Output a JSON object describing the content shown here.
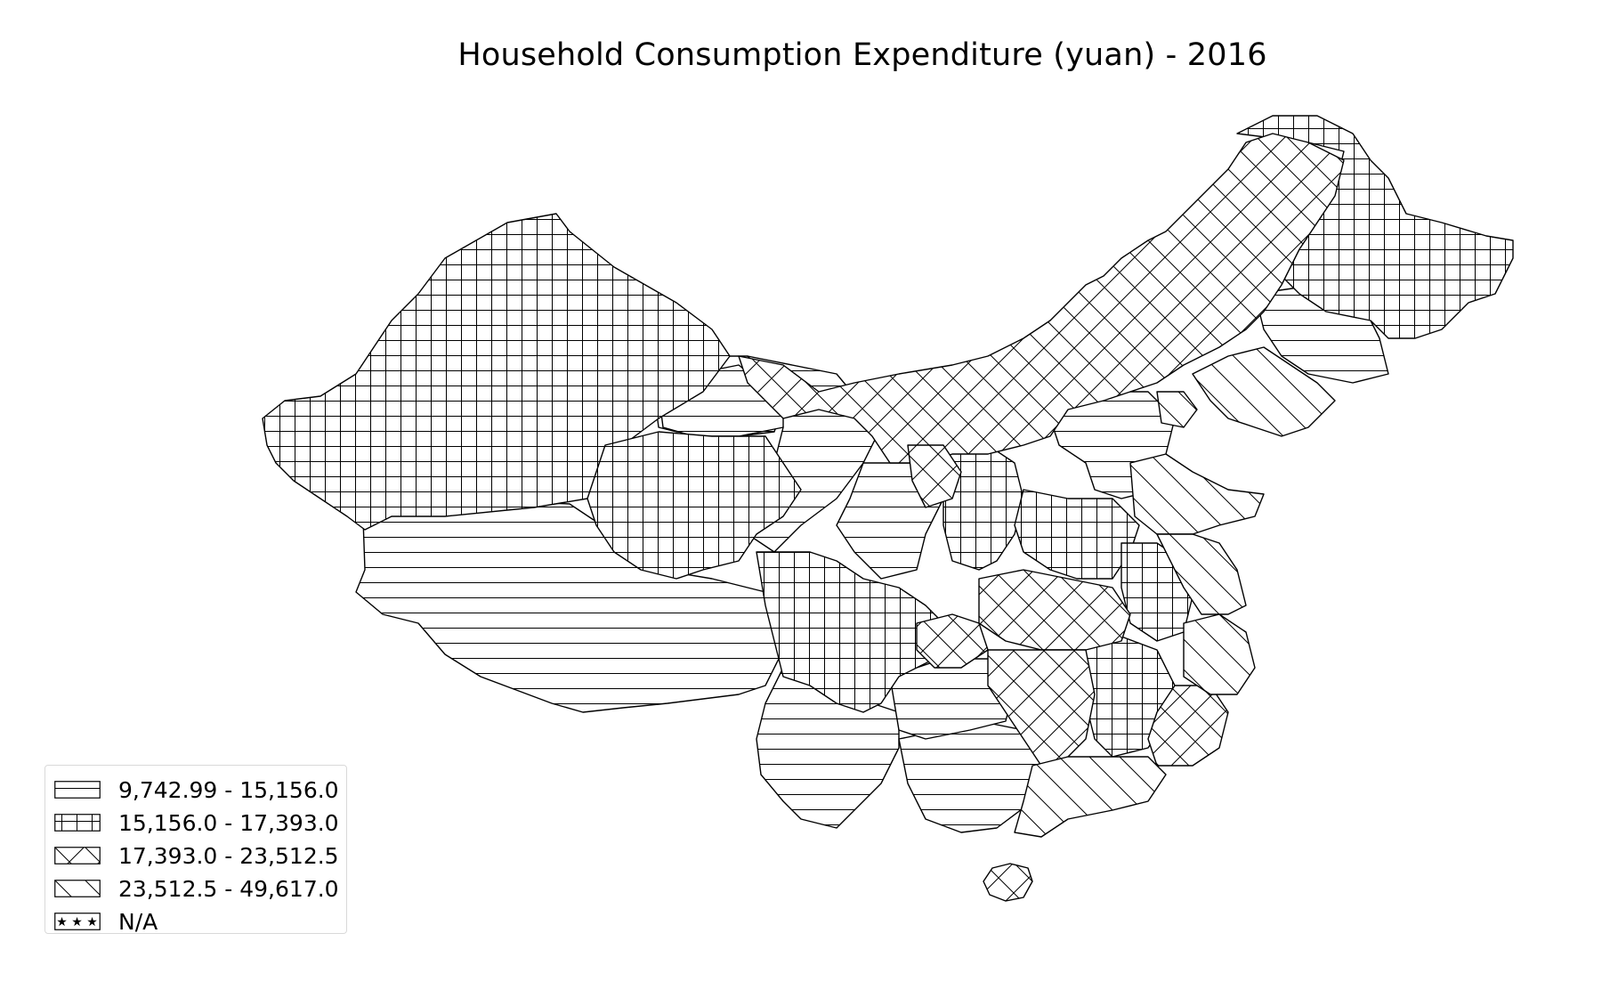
{
  "chart_data": {
    "type": "choropleth",
    "title": "Household Consumption Expenditure (yuan) - 2016",
    "legend_position": "bottom-left",
    "classes": [
      {
        "label": "9,742.99 - 15,156.0",
        "pattern": "horizontal-lines"
      },
      {
        "label": "15,156.0 - 17,393.0",
        "pattern": "grid"
      },
      {
        "label": "17,393.0 - 23,512.5",
        "pattern": "diagonal-cross"
      },
      {
        "label": "23,512.5 - 49,617.0",
        "pattern": "backslash"
      },
      {
        "label": "N/A",
        "pattern": "stars"
      }
    ],
    "region_classes": [
      {
        "class_index": 0
      },
      {
        "class_index": 0
      },
      {
        "class_index": 0
      },
      {
        "class_index": 0
      },
      {
        "class_index": 0
      },
      {
        "class_index": 0
      },
      {
        "class_index": 0
      },
      {
        "class_index": 0
      },
      {
        "class_index": 0
      },
      {
        "class_index": 0
      },
      {
        "class_index": 1
      },
      {
        "class_index": 1
      },
      {
        "class_index": 1
      },
      {
        "class_index": 1
      },
      {
        "class_index": 1
      },
      {
        "class_index": 1
      },
      {
        "class_index": 1
      },
      {
        "class_index": 1
      },
      {
        "class_index": 2
      },
      {
        "class_index": 2
      },
      {
        "class_index": 2
      },
      {
        "class_index": 2
      },
      {
        "class_index": 2
      },
      {
        "class_index": 2
      },
      {
        "class_index": 2
      },
      {
        "class_index": 3
      },
      {
        "class_index": 3
      },
      {
        "class_index": 3
      },
      {
        "class_index": 3
      },
      {
        "class_index": 3
      },
      {
        "class_index": 3
      }
    ]
  },
  "colors": {
    "background": "#ffffff",
    "outline": "#000000",
    "legend_border": "#d9d9d9"
  }
}
